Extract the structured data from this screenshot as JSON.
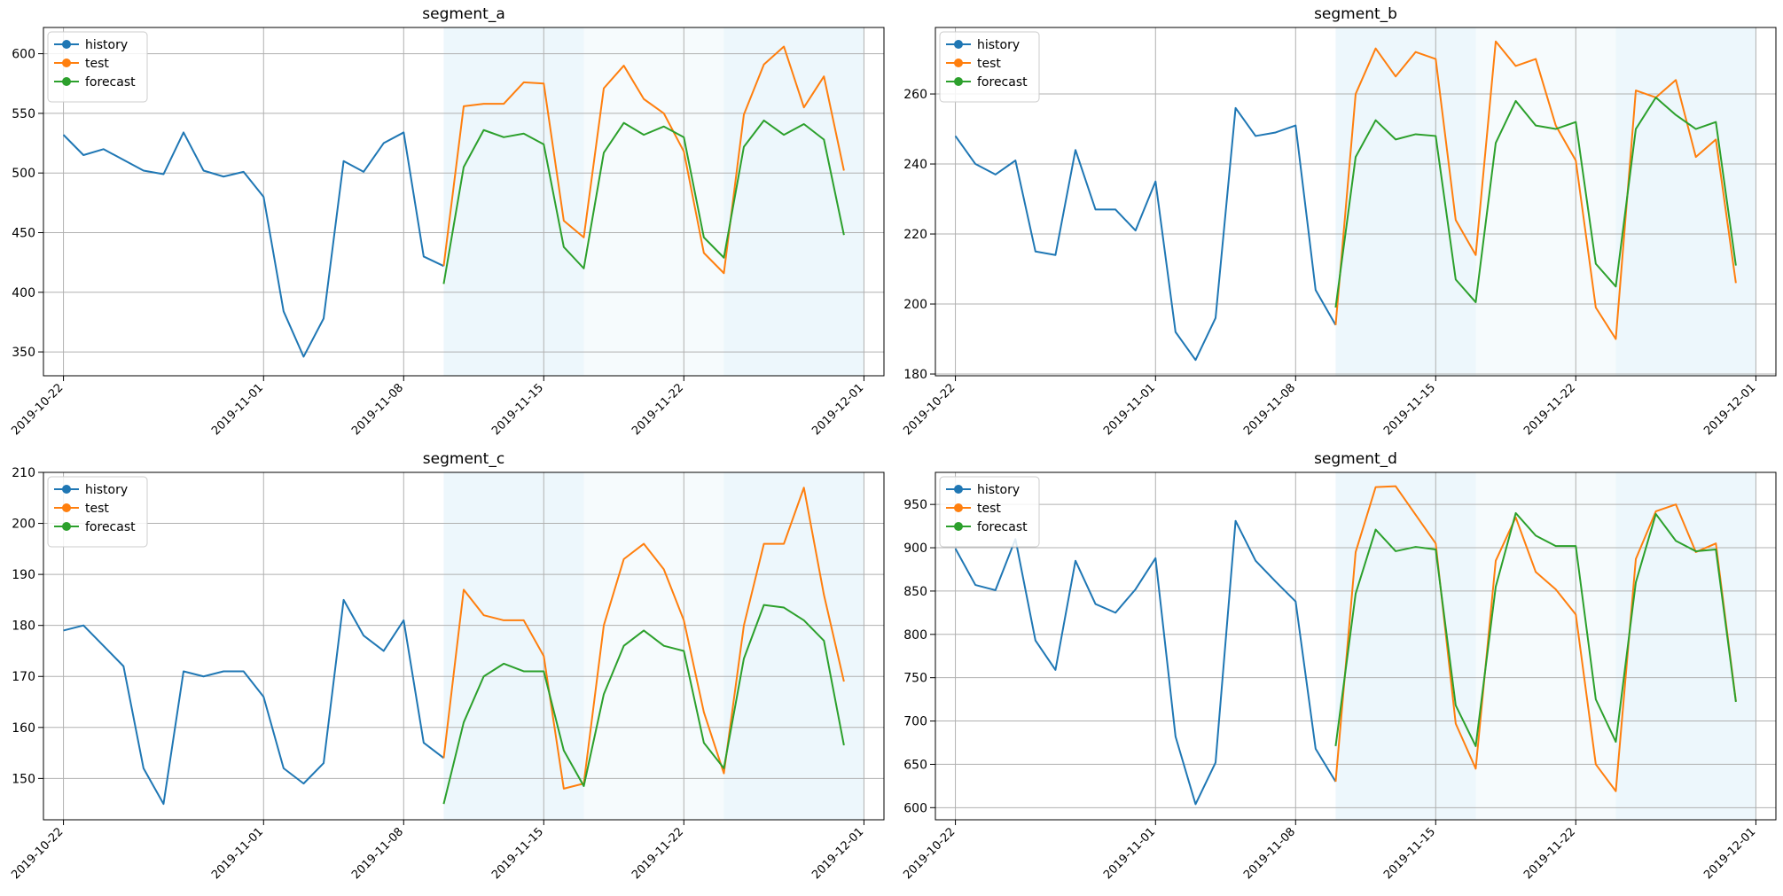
{
  "chart_data": [
    {
      "type": "line",
      "title": "segment_a",
      "xlabel": "",
      "ylabel": "",
      "ylim": [
        330,
        622
      ],
      "yticks": [
        350,
        400,
        450,
        500,
        550,
        600
      ],
      "grid": true,
      "legend": "top-left",
      "series": [
        {
          "name": "history",
          "start": "2019-10-22",
          "values": [
            532,
            515,
            520,
            511,
            502,
            499,
            534,
            502,
            497,
            501,
            480,
            384,
            346,
            378,
            510,
            501,
            525,
            534,
            430,
            422
          ]
        },
        {
          "name": "test",
          "start": "2019-11-10",
          "values": [
            422,
            556,
            558,
            558,
            576,
            575,
            460,
            446,
            571,
            590,
            562,
            550,
            518,
            433,
            416,
            549,
            591,
            606,
            555,
            581,
            502
          ]
        },
        {
          "name": "forecast",
          "start": "2019-11-10",
          "values": [
            407,
            505,
            536,
            530,
            533,
            524,
            438,
            420,
            517,
            542,
            532,
            539,
            530,
            446,
            429,
            522,
            544,
            532,
            541,
            528,
            448
          ]
        }
      ]
    },
    {
      "type": "line",
      "title": "segment_b",
      "xlabel": "",
      "ylabel": "",
      "ylim": [
        179.5,
        279
      ],
      "yticks": [
        180,
        200,
        220,
        240,
        260
      ],
      "grid": true,
      "legend": "top-left",
      "series": [
        {
          "name": "history",
          "start": "2019-10-22",
          "values": [
            248,
            240,
            237,
            241,
            215,
            214,
            244,
            227,
            227,
            221,
            235,
            192,
            184,
            196,
            256,
            248,
            249,
            251,
            204,
            194
          ]
        },
        {
          "name": "test",
          "start": "2019-11-10",
          "values": [
            194,
            260,
            273,
            265,
            272,
            270,
            224,
            214,
            275,
            268,
            270,
            251,
            241,
            199,
            190,
            261,
            259,
            264,
            242,
            247,
            206
          ]
        },
        {
          "name": "forecast",
          "start": "2019-11-10",
          "values": [
            199,
            242,
            252.5,
            247,
            248.5,
            248,
            207,
            200.5,
            246,
            258,
            251,
            250,
            252,
            211.5,
            205,
            250,
            259,
            254,
            250,
            252,
            211
          ]
        }
      ]
    },
    {
      "type": "line",
      "title": "segment_c",
      "xlabel": "",
      "ylabel": "",
      "ylim": [
        141.9,
        210
      ],
      "yticks": [
        150,
        160,
        170,
        180,
        190,
        200,
        210
      ],
      "grid": true,
      "legend": "top-left",
      "series": [
        {
          "name": "history",
          "start": "2019-10-22",
          "values": [
            179,
            180,
            176,
            172,
            152,
            145,
            171,
            170,
            171,
            171,
            166,
            152,
            149,
            153,
            185,
            178,
            175,
            181,
            157,
            154
          ]
        },
        {
          "name": "test",
          "start": "2019-11-10",
          "values": [
            154,
            187,
            182,
            181,
            181,
            174,
            148,
            149,
            180,
            193,
            196,
            191,
            181,
            163,
            151,
            180,
            196,
            196,
            207,
            186,
            169
          ]
        },
        {
          "name": "forecast",
          "start": "2019-11-10",
          "values": [
            145,
            161,
            170,
            172.5,
            171,
            171,
            155.5,
            148.5,
            166.5,
            176,
            179,
            176,
            175,
            157,
            152,
            173.5,
            184,
            183.5,
            181,
            177,
            156.5
          ]
        }
      ]
    },
    {
      "type": "line",
      "title": "segment_d",
      "xlabel": "",
      "ylabel": "",
      "ylim": [
        586,
        987
      ],
      "yticks": [
        600,
        650,
        700,
        750,
        800,
        850,
        900,
        950
      ],
      "grid": true,
      "legend": "top-left",
      "series": [
        {
          "name": "history",
          "start": "2019-10-22",
          "values": [
            899,
            857,
            851,
            910,
            793,
            759,
            885,
            835,
            825,
            852,
            888,
            682,
            604,
            652,
            931,
            885,
            861,
            838,
            668,
            630
          ]
        },
        {
          "name": "test",
          "start": "2019-11-10",
          "values": [
            630,
            895,
            970,
            971,
            938,
            905,
            697,
            645,
            885,
            935,
            872,
            852,
            823,
            650,
            619,
            887,
            942,
            950,
            895,
            905,
            723
          ]
        },
        {
          "name": "forecast",
          "start": "2019-11-10",
          "values": [
            671,
            847,
            921,
            896,
            901,
            898,
            718,
            671,
            855,
            940,
            914,
            902,
            902,
            725,
            676,
            860,
            939,
            908,
            896,
            898,
            722
          ]
        }
      ]
    }
  ],
  "x_axis": {
    "start": "2019-10-21",
    "end": "2019-12-02",
    "ticks": [
      "2019-10-22",
      "2019-11-01",
      "2019-11-08",
      "2019-11-15",
      "2019-11-22",
      "2019-12-01"
    ]
  },
  "shaded_bands": [
    {
      "from": "2019-11-10",
      "to": "2019-11-17",
      "opacity": 0.08
    },
    {
      "from": "2019-11-17",
      "to": "2019-11-24",
      "opacity": 0.04
    },
    {
      "from": "2019-11-24",
      "to": "2019-12-01",
      "opacity": 0.08
    }
  ],
  "colors": {
    "history": "#1f77b4",
    "test": "#ff7f0e",
    "forecast": "#2ca02c",
    "band": "#1f9bd4",
    "grid": "#b0b0b0"
  },
  "legend": [
    "history",
    "test",
    "forecast"
  ]
}
